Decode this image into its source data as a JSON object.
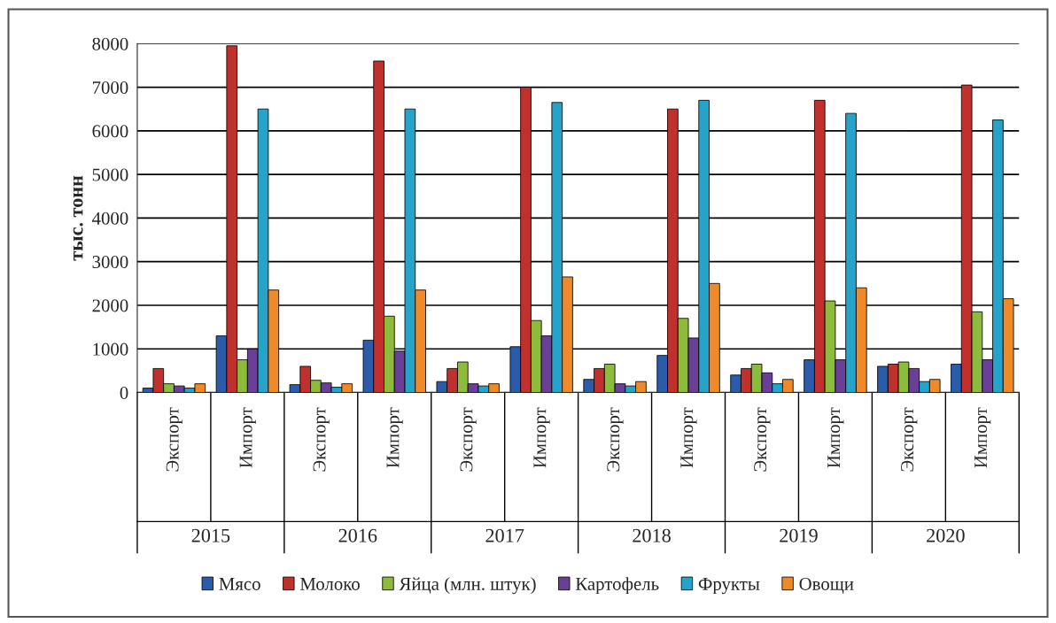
{
  "chart_data": {
    "type": "bar",
    "ylabel": "тыс. тонн",
    "categories": [
      "Экспорт",
      "Импорт",
      "Экспорт",
      "Импорт",
      "Экспорт",
      "Импорт",
      "Экспорт",
      "Импорт",
      "Экспорт",
      "Импорт",
      "Экспорт",
      "Импорт"
    ],
    "annotations": [
      "2015",
      "2016",
      "2017",
      "2018",
      "2019",
      "2020"
    ],
    "series": [
      {
        "name": "Мясо",
        "color": "#2a5caa",
        "values": [
          100,
          1300,
          180,
          1200,
          250,
          1050,
          300,
          850,
          400,
          750,
          600,
          650
        ]
      },
      {
        "name": "Молоко",
        "color": "#c0302c",
        "values": [
          550,
          7950,
          600,
          7600,
          550,
          7000,
          550,
          6500,
          550,
          6700,
          650,
          7050
        ]
      },
      {
        "name": "Яйца (млн. штук)",
        "color": "#8dbb3c",
        "values": [
          200,
          750,
          280,
          1750,
          700,
          1650,
          650,
          1700,
          650,
          2100,
          700,
          1850
        ]
      },
      {
        "name": "Картофель",
        "color": "#6a3f98",
        "values": [
          150,
          1000,
          220,
          950,
          200,
          1300,
          200,
          1250,
          450,
          750,
          550,
          750
        ]
      },
      {
        "name": "Фрукты",
        "color": "#25a3c8",
        "values": [
          100,
          6500,
          120,
          6500,
          150,
          6650,
          150,
          6700,
          200,
          6400,
          250,
          6250
        ]
      },
      {
        "name": "Овощи",
        "color": "#ef8a2a",
        "values": [
          200,
          2350,
          200,
          2350,
          200,
          2650,
          250,
          2500,
          300,
          2400,
          300,
          2150
        ]
      }
    ],
    "ylim": [
      0,
      8000
    ],
    "yticks": [
      0,
      1000,
      2000,
      3000,
      4000,
      5000,
      6000,
      7000,
      8000
    ],
    "grid": "y",
    "legend": "bottom"
  }
}
